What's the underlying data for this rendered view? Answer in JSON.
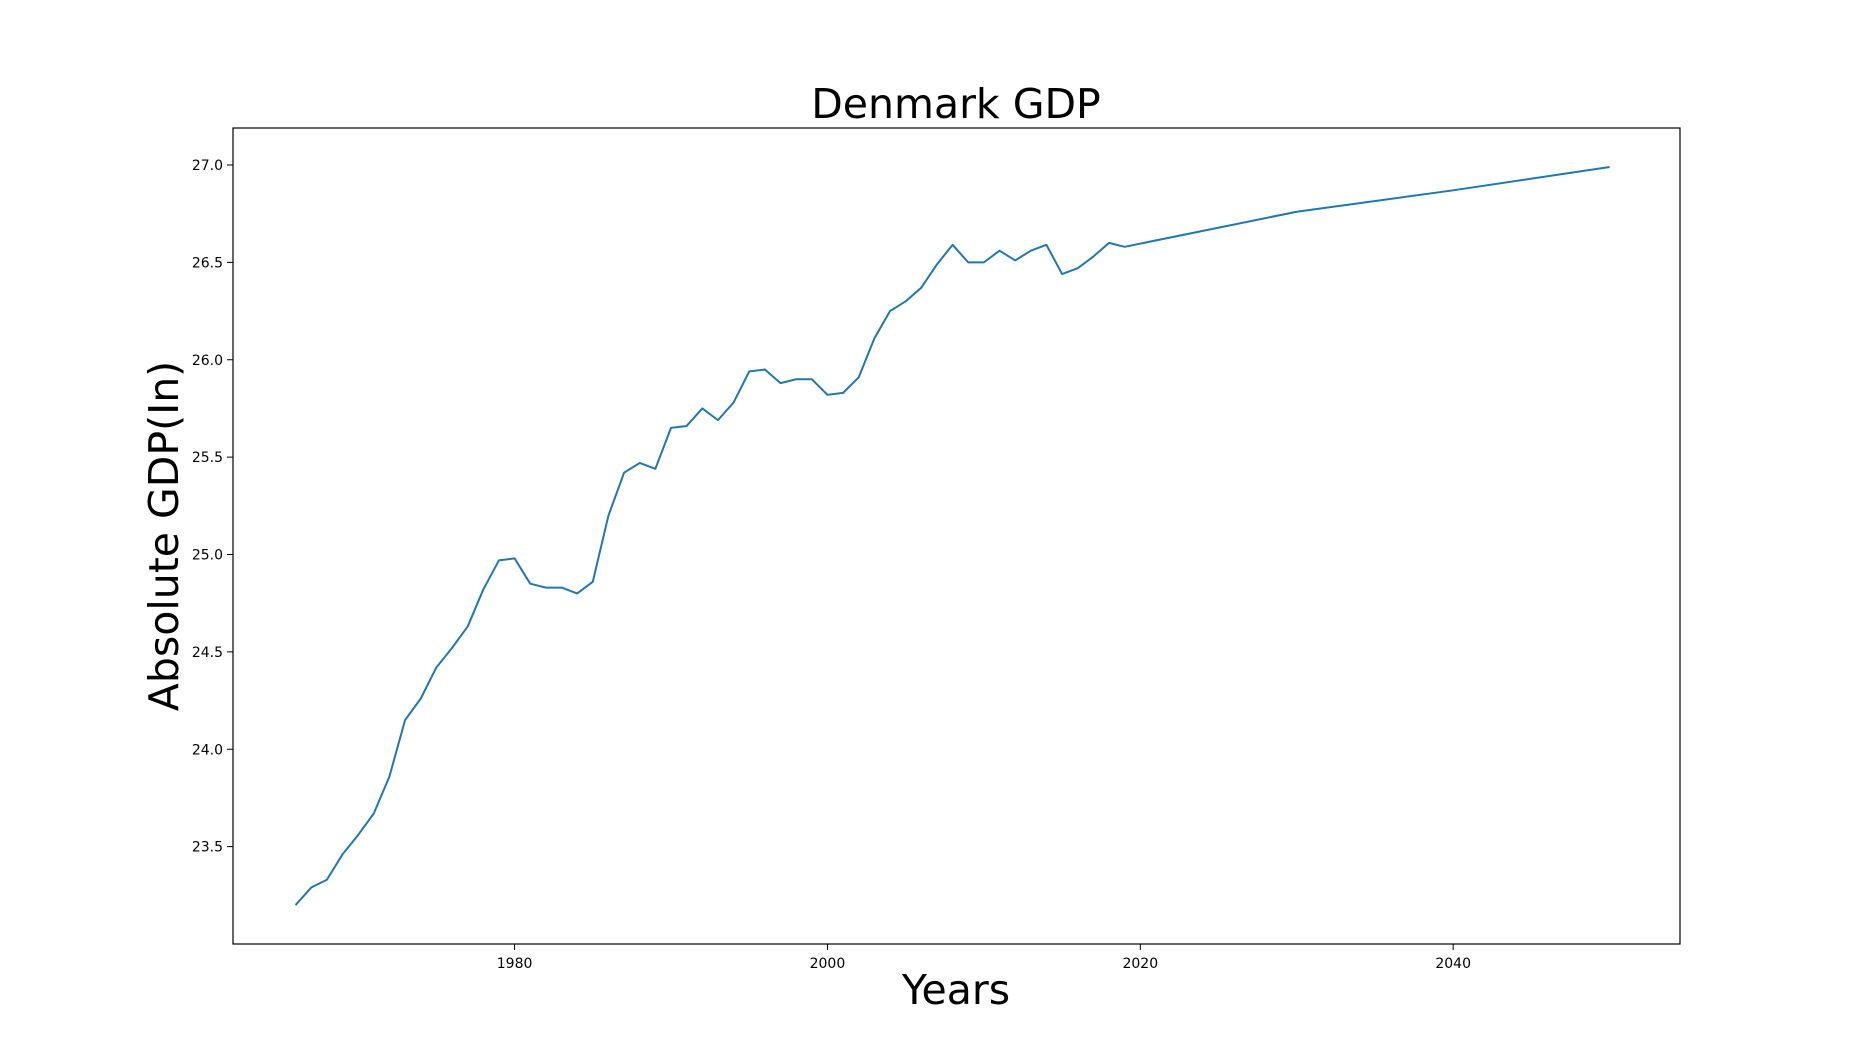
{
  "chart_data": {
    "type": "line",
    "title": "Denmark GDP",
    "xlabel": "Years",
    "ylabel": "Absolute GDP(In)",
    "xlim": [
      1962,
      2054.5
    ],
    "ylim": [
      23.0,
      27.19
    ],
    "xticks": [
      1980,
      2000,
      2020,
      2040
    ],
    "xtick_labels": [
      "1980",
      "2000",
      "2020",
      "2040"
    ],
    "yticks": [
      23.5,
      24.0,
      24.5,
      25.0,
      25.5,
      26.0,
      26.5,
      27.0
    ],
    "ytick_labels": [
      "23.5",
      "24.0",
      "24.5",
      "25.0",
      "25.5",
      "26.0",
      "26.5",
      "27.0"
    ],
    "grid": false,
    "legend": "none",
    "series": [
      {
        "color": "#1f77b4",
        "x": [
          1966,
          1967,
          1968,
          1969,
          1970,
          1971,
          1972,
          1973,
          1974,
          1975,
          1976,
          1977,
          1978,
          1979,
          1980,
          1981,
          1982,
          1983,
          1984,
          1985,
          1986,
          1987,
          1988,
          1989,
          1990,
          1991,
          1992,
          1993,
          1994,
          1995,
          1996,
          1997,
          1998,
          1999,
          2000,
          2001,
          2002,
          2003,
          2004,
          2005,
          2006,
          2007,
          2008,
          2009,
          2010,
          2011,
          2012,
          2013,
          2014,
          2015,
          2016,
          2017,
          2018,
          2019,
          2030,
          2040,
          2050
        ],
        "y": [
          23.2,
          23.29,
          23.33,
          23.46,
          23.56,
          23.67,
          23.86,
          24.15,
          24.26,
          24.42,
          24.52,
          24.63,
          24.82,
          24.97,
          24.98,
          24.85,
          24.83,
          24.83,
          24.8,
          24.86,
          25.2,
          25.42,
          25.47,
          25.44,
          25.65,
          25.66,
          25.75,
          25.69,
          25.78,
          25.94,
          25.95,
          25.88,
          25.9,
          25.9,
          25.82,
          25.83,
          25.91,
          26.11,
          26.25,
          26.3,
          26.37,
          26.49,
          26.59,
          26.5,
          26.5,
          26.56,
          26.51,
          26.56,
          26.59,
          26.44,
          26.47,
          26.53,
          26.6,
          26.58,
          26.76,
          26.87,
          26.99
        ]
      }
    ]
  }
}
